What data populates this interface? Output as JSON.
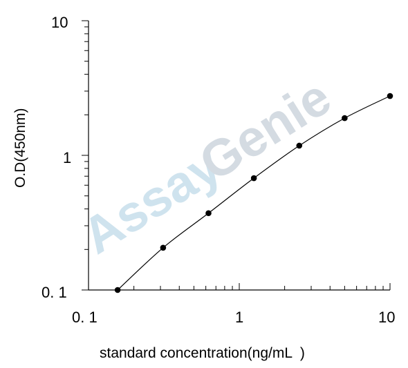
{
  "chart_data": {
    "type": "line",
    "title": "",
    "xlabel": "standard concentration(ng/mL  )",
    "ylabel": "O.D(450nm)",
    "xscale": "log",
    "yscale": "log",
    "xlim": [
      0.1,
      10
    ],
    "ylim": [
      0.1,
      10
    ],
    "x_ticks": [
      "0. 1",
      "1",
      "10"
    ],
    "y_ticks": [
      "0. 1",
      "1",
      "10"
    ],
    "grid": false,
    "legend": "none",
    "series": [
      {
        "x": [
          0.156,
          0.3125,
          0.625,
          1.25,
          2.5,
          5,
          10
        ],
        "y": [
          0.1,
          0.206,
          0.372,
          0.677,
          1.18,
          1.89,
          2.76
        ]
      }
    ],
    "watermark": {
      "part1": "Assay",
      "part2": "Genie"
    },
    "colors": {
      "line": "#000000",
      "marker": "#000000",
      "watermark_blue": "#cfe3ee",
      "watermark_gray": "#d4dbe2"
    }
  }
}
